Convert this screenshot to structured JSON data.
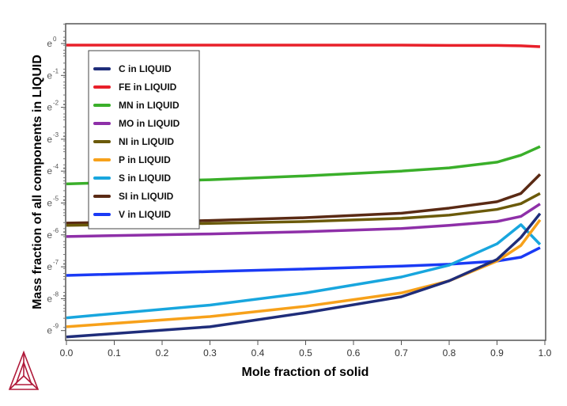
{
  "chart_data": {
    "type": "line",
    "xlabel": "Mole fraction of solid",
    "ylabel": "Mass fraction of all components in LIQUID",
    "xlim": [
      0,
      1
    ],
    "ylim_ln": [
      -9.3,
      0.6
    ],
    "y_scale": "natural log",
    "xticks": [
      "0.0",
      "0.1",
      "0.2",
      "0.3",
      "0.4",
      "0.5",
      "0.6",
      "0.7",
      "0.8",
      "0.9",
      "1.0"
    ],
    "yticks": [
      {
        "base": "e",
        "exp": "0"
      },
      {
        "base": "e",
        "exp": "-1"
      },
      {
        "base": "e",
        "exp": "-2"
      },
      {
        "base": "e",
        "exp": "-3"
      },
      {
        "base": "e",
        "exp": "-4"
      },
      {
        "base": "e",
        "exp": "-5"
      },
      {
        "base": "e",
        "exp": "-6"
      },
      {
        "base": "e",
        "exp": "-7"
      },
      {
        "base": "e",
        "exp": "-8"
      },
      {
        "base": "e",
        "exp": "-9"
      }
    ],
    "legend_placement": "top-left",
    "x": [
      0,
      0.3,
      0.5,
      0.7,
      0.8,
      0.9,
      0.95,
      0.99
    ],
    "series": [
      {
        "name": "C in LIQUID",
        "color": "#1f2d7a",
        "ln_values": [
          -9.2,
          -8.88,
          -8.44,
          -7.94,
          -7.44,
          -6.77,
          -6.08,
          -5.33
        ]
      },
      {
        "name": "FE in LIQUID",
        "color": "#e8202a",
        "ln_values": [
          -0.05,
          -0.05,
          -0.05,
          -0.05,
          -0.06,
          -0.06,
          -0.07,
          -0.1
        ]
      },
      {
        "name": "MN in LIQUID",
        "color": "#3aaf2a",
        "ln_values": [
          -4.4,
          -4.27,
          -4.15,
          -4.0,
          -3.9,
          -3.72,
          -3.5,
          -3.23
        ]
      },
      {
        "name": "MO in LIQUID",
        "color": "#8e2fa8",
        "ln_values": [
          -6.05,
          -5.97,
          -5.9,
          -5.8,
          -5.7,
          -5.58,
          -5.42,
          -5.03
        ]
      },
      {
        "name": "NI in LIQUID",
        "color": "#6b5a0a",
        "ln_values": [
          -5.7,
          -5.64,
          -5.58,
          -5.48,
          -5.38,
          -5.2,
          -5.02,
          -4.7
        ]
      },
      {
        "name": "P in LIQUID",
        "color": "#f7a11a",
        "ln_values": [
          -8.88,
          -8.56,
          -8.24,
          -7.82,
          -7.44,
          -6.82,
          -6.33,
          -5.53
        ]
      },
      {
        "name": "S in LIQUID",
        "color": "#18a6de",
        "ln_values": [
          -8.6,
          -8.2,
          -7.82,
          -7.32,
          -6.95,
          -6.28,
          -5.68,
          -6.3
        ]
      },
      {
        "name": "SI in LIQUID",
        "color": "#5a2a14",
        "ln_values": [
          -5.63,
          -5.55,
          -5.46,
          -5.32,
          -5.16,
          -4.96,
          -4.7,
          -4.1
        ]
      },
      {
        "name": "V in LIQUID",
        "color": "#1a3af5",
        "ln_values": [
          -7.27,
          -7.15,
          -7.07,
          -6.98,
          -6.92,
          -6.82,
          -6.7,
          -6.4
        ]
      }
    ]
  }
}
